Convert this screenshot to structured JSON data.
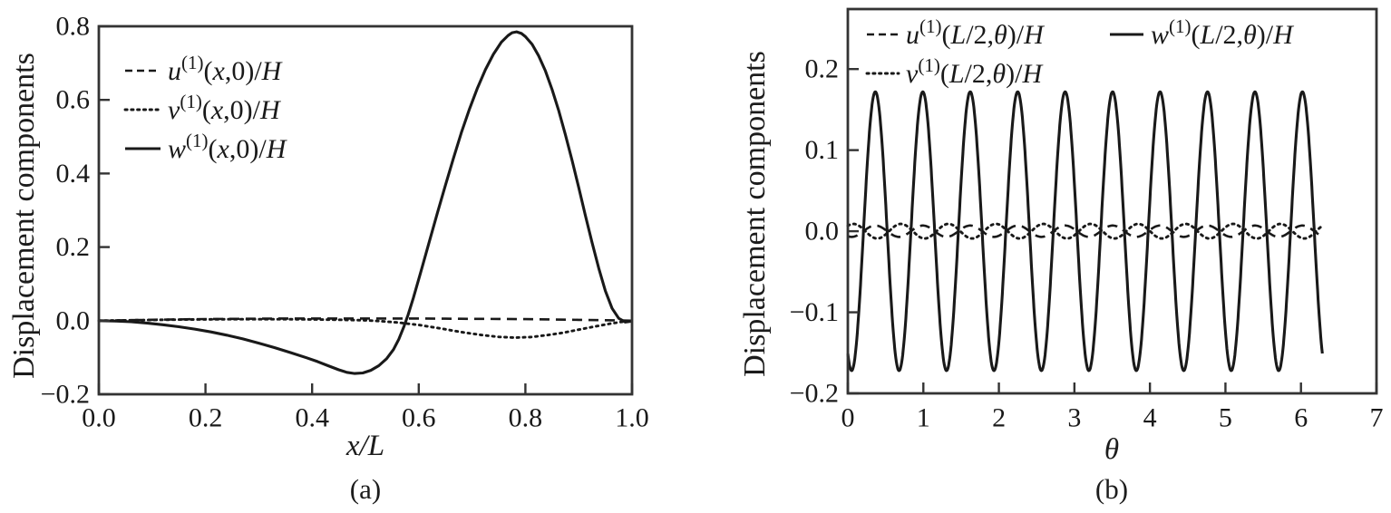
{
  "figure": {
    "background": "#ffffff",
    "line_color": "#191919",
    "axis_color": "#333333"
  },
  "chart_data": [
    {
      "id": "a",
      "type": "line",
      "caption": "(a)",
      "xlabel": "x/L",
      "ylabel": "Displacement components",
      "xlim": [
        0,
        1
      ],
      "ylim": [
        -0.2,
        0.8
      ],
      "grid": false,
      "legend_position": "upper-left-inside",
      "xticks": {
        "values": [
          0,
          0.2,
          0.4,
          0.6,
          0.8,
          1.0
        ],
        "labels": [
          "0.0",
          "0.2",
          "0.4",
          "0.6",
          "0.8",
          "1.0"
        ]
      },
      "yticks": {
        "values": [
          -0.2,
          0,
          0.2,
          0.4,
          0.6,
          0.8
        ],
        "labels": [
          "−0.2",
          "0.0",
          "0.2",
          "0.4",
          "0.6",
          "0.8"
        ]
      },
      "series": [
        {
          "key": "u",
          "name": "u^{(1)}(x,0)/H",
          "style": "dashed",
          "points": [
            [
              0,
              0
            ],
            [
              0.05,
              0.0012
            ],
            [
              0.1,
              0.0025
            ],
            [
              0.15,
              0.0035
            ],
            [
              0.2,
              0.0045
            ],
            [
              0.25,
              0.005
            ],
            [
              0.3,
              0.0055
            ],
            [
              0.35,
              0.0058
            ],
            [
              0.4,
              0.006
            ],
            [
              0.45,
              0.006
            ],
            [
              0.5,
              0.006
            ],
            [
              0.55,
              0.006
            ],
            [
              0.6,
              0.0058
            ],
            [
              0.65,
              0.0055
            ],
            [
              0.7,
              0.005
            ],
            [
              0.75,
              0.0048
            ],
            [
              0.8,
              0.0042
            ],
            [
              0.85,
              0.0032
            ],
            [
              0.9,
              0.0022
            ],
            [
              0.95,
              0.0012
            ],
            [
              1,
              0
            ]
          ]
        },
        {
          "key": "v",
          "name": "v^{(1)}(x,0)/H",
          "style": "dotted",
          "points": [
            [
              0,
              0
            ],
            [
              0.05,
              0.001
            ],
            [
              0.1,
              0.002
            ],
            [
              0.15,
              0.003
            ],
            [
              0.2,
              0.0035
            ],
            [
              0.25,
              0.004
            ],
            [
              0.3,
              0.004
            ],
            [
              0.35,
              0.004
            ],
            [
              0.4,
              0.0035
            ],
            [
              0.45,
              0.0025
            ],
            [
              0.5,
              0.001
            ],
            [
              0.53,
              -0.0015
            ],
            [
              0.56,
              -0.005
            ],
            [
              0.6,
              -0.0115
            ],
            [
              0.64,
              -0.021
            ],
            [
              0.68,
              -0.031
            ],
            [
              0.72,
              -0.0395
            ],
            [
              0.75,
              -0.044
            ],
            [
              0.78,
              -0.046
            ],
            [
              0.81,
              -0.0445
            ],
            [
              0.84,
              -0.0395
            ],
            [
              0.87,
              -0.033
            ],
            [
              0.9,
              -0.0245
            ],
            [
              0.93,
              -0.016
            ],
            [
              0.96,
              -0.008
            ],
            [
              0.98,
              -0.0035
            ],
            [
              1,
              -0.0005
            ]
          ]
        },
        {
          "key": "w",
          "name": "w^{(1)}(x,0)/H",
          "style": "solid",
          "minimum": {
            "x": 0.48,
            "y": -0.144
          },
          "zero_crossing_x": 0.578,
          "peak": {
            "x": 0.78,
            "y": 0.785
          },
          "points": [
            [
              0,
              0
            ],
            [
              0.03,
              -0.001
            ],
            [
              0.06,
              -0.003
            ],
            [
              0.09,
              -0.0065
            ],
            [
              0.12,
              -0.011
            ],
            [
              0.15,
              -0.0165
            ],
            [
              0.18,
              -0.023
            ],
            [
              0.21,
              -0.0305
            ],
            [
              0.24,
              -0.0395
            ],
            [
              0.27,
              -0.0495
            ],
            [
              0.3,
              -0.061
            ],
            [
              0.33,
              -0.0735
            ],
            [
              0.36,
              -0.087
            ],
            [
              0.39,
              -0.101
            ],
            [
              0.41,
              -0.111
            ],
            [
              0.43,
              -0.1225
            ],
            [
              0.45,
              -0.1335
            ],
            [
              0.465,
              -0.1405
            ],
            [
              0.48,
              -0.1435
            ],
            [
              0.495,
              -0.142
            ],
            [
              0.51,
              -0.135
            ],
            [
              0.525,
              -0.1225
            ],
            [
              0.54,
              -0.103
            ],
            [
              0.5525,
              -0.0785
            ],
            [
              0.5625,
              -0.0505
            ],
            [
              0.5725,
              -0.015
            ],
            [
              0.58,
              0.0155
            ],
            [
              0.59,
              0.062
            ],
            [
              0.605,
              0.138
            ],
            [
              0.62,
              0.216
            ],
            [
              0.635,
              0.293
            ],
            [
              0.65,
              0.368
            ],
            [
              0.665,
              0.441
            ],
            [
              0.68,
              0.511
            ],
            [
              0.695,
              0.575
            ],
            [
              0.71,
              0.632
            ],
            [
              0.725,
              0.682
            ],
            [
              0.74,
              0.724
            ],
            [
              0.755,
              0.757
            ],
            [
              0.7675,
              0.775
            ],
            [
              0.775,
              0.7825
            ],
            [
              0.7835,
              0.785
            ],
            [
              0.7925,
              0.7805
            ],
            [
              0.8,
              0.772
            ],
            [
              0.8125,
              0.751
            ],
            [
              0.825,
              0.7195
            ],
            [
              0.8375,
              0.6785
            ],
            [
              0.85,
              0.6285
            ],
            [
              0.8625,
              0.5705
            ],
            [
              0.875,
              0.5055
            ],
            [
              0.8875,
              0.4355
            ],
            [
              0.9,
              0.362
            ],
            [
              0.9125,
              0.2865
            ],
            [
              0.925,
              0.2125
            ],
            [
              0.9375,
              0.1425
            ],
            [
              0.95,
              0.081
            ],
            [
              0.9625,
              0.0335
            ],
            [
              0.975,
              0.0065
            ],
            [
              0.9875,
              -0.004
            ],
            [
              1,
              -0.0015
            ]
          ]
        }
      ]
    },
    {
      "id": "b",
      "type": "line",
      "caption": "(b)",
      "xlabel": "θ",
      "ylabel": "Displacement components",
      "xlim": [
        0,
        7
      ],
      "ylim": [
        -0.2,
        0.274
      ],
      "grid": false,
      "legend_position": "top-inside-two-column",
      "xticks": {
        "values": [
          0,
          1,
          2,
          3,
          4,
          5,
          6,
          7
        ],
        "labels": [
          "0",
          "1",
          "2",
          "3",
          "4",
          "5",
          "6",
          "7"
        ]
      },
      "yticks": {
        "values": [
          -0.2,
          -0.1,
          0,
          0.1,
          0.2
        ],
        "labels": [
          "−0.2",
          "−0.1",
          "0.0",
          "0.1",
          "0.2"
        ]
      },
      "series": [
        {
          "key": "u",
          "name": "u^{(1)}(L/2,θ)/H",
          "style": "dashed",
          "formula": {
            "kind": "cosine",
            "offset": 0,
            "amplitude": -0.007,
            "frequency": 10,
            "phase": -0.5,
            "theta_range": [
              0,
              6.283
            ],
            "samples": 700
          }
        },
        {
          "key": "v",
          "name": "v^{(1)}(L/2,θ)/H",
          "style": "dotted",
          "formula": {
            "kind": "cosine",
            "offset": 0,
            "amplitude": 0.009,
            "frequency": 10,
            "phase": -0.75,
            "theta_range": [
              0,
              6.283
            ],
            "samples": 700
          }
        },
        {
          "key": "w",
          "name": "w^{(1)}(L/2,θ)/H",
          "style": "solid",
          "oscillations_over_range": 10,
          "formula": {
            "kind": "cosine",
            "offset": 0,
            "amplitude": -0.172,
            "frequency": 10,
            "phase": -0.5,
            "theta_range": [
              0,
              6.283
            ],
            "samples": 900
          }
        }
      ]
    }
  ]
}
